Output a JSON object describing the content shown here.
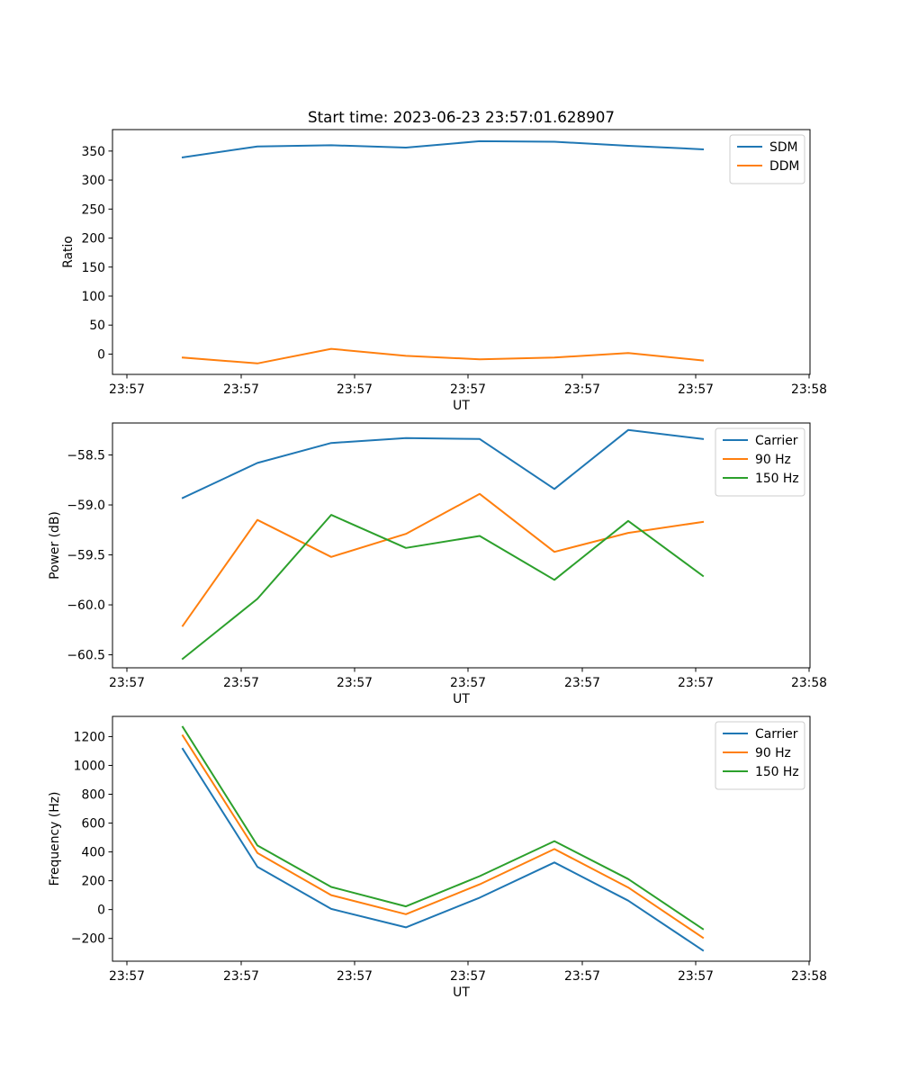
{
  "figure": {
    "title": "Start time: 2023-06-23 23:57:01.628907"
  },
  "chart_data": [
    {
      "type": "line",
      "title": "Start time: 2023-06-23 23:57:01.628907",
      "xlabel": "UT",
      "ylabel": "Ratio",
      "x_tick_labels": [
        "23:57",
        "23:57",
        "23:57",
        "23:57",
        "23:57",
        "23:57",
        "23:58"
      ],
      "y_ticks": [
        0,
        50,
        100,
        150,
        200,
        250,
        300,
        350
      ],
      "ylim": [
        -35,
        387
      ],
      "x": [
        1,
        2,
        3,
        4,
        5,
        6,
        7,
        8
      ],
      "series": [
        {
          "name": "SDM",
          "color": "#1f77b4",
          "values": [
            339,
            358,
            360,
            356,
            367,
            366,
            359,
            353
          ]
        },
        {
          "name": "DDM",
          "color": "#ff7f0e",
          "values": [
            -6,
            -16,
            9,
            -3,
            -9,
            -6,
            2,
            -11
          ]
        }
      ],
      "legend": "top-right",
      "grid": false
    },
    {
      "type": "line",
      "title": "",
      "xlabel": "UT",
      "ylabel": "Power (dB)",
      "x_tick_labels": [
        "23:57",
        "23:57",
        "23:57",
        "23:57",
        "23:57",
        "23:57",
        "23:58"
      ],
      "y_ticks": [
        -60.5,
        -60.0,
        -59.5,
        -59.0,
        -58.5
      ],
      "y_tick_labels": [
        "−60.5",
        "−60.0",
        "−59.5",
        "−59.0",
        "−58.5"
      ],
      "ylim": [
        -60.63,
        -58.18
      ],
      "x": [
        1,
        2,
        3,
        4,
        5,
        6,
        7,
        8
      ],
      "series": [
        {
          "name": "Carrier",
          "color": "#1f77b4",
          "values": [
            -58.93,
            -58.58,
            -58.38,
            -58.33,
            -58.34,
            -58.84,
            -58.25,
            -58.34
          ]
        },
        {
          "name": "90 Hz",
          "color": "#ff7f0e",
          "values": [
            -60.21,
            -59.15,
            -59.52,
            -59.29,
            -58.89,
            -59.47,
            -59.28,
            -59.17
          ]
        },
        {
          "name": "150 Hz",
          "color": "#2ca02c",
          "values": [
            -60.54,
            -59.94,
            -59.1,
            -59.43,
            -59.31,
            -59.75,
            -59.16,
            -59.71
          ]
        }
      ],
      "legend": "top-right",
      "grid": false
    },
    {
      "type": "line",
      "title": "",
      "xlabel": "UT",
      "ylabel": "Frequency (Hz)",
      "x_tick_labels": [
        "23:57",
        "23:57",
        "23:57",
        "23:57",
        "23:57",
        "23:57",
        "23:58"
      ],
      "y_ticks": [
        -200,
        0,
        200,
        400,
        600,
        800,
        1000,
        1200
      ],
      "y_tick_labels": [
        "−200",
        "0",
        "200",
        "400",
        "600",
        "800",
        "1000",
        "1200"
      ],
      "ylim": [
        -358,
        1340
      ],
      "x": [
        1,
        2,
        3,
        4,
        5,
        6,
        7,
        8
      ],
      "series": [
        {
          "name": "Carrier",
          "color": "#1f77b4",
          "values": [
            1115,
            297,
            5,
            -123,
            83,
            327,
            62,
            -283
          ]
        },
        {
          "name": "90 Hz",
          "color": "#ff7f0e",
          "values": [
            1207,
            393,
            100,
            -32,
            175,
            420,
            153,
            -195
          ]
        },
        {
          "name": "150 Hz",
          "color": "#2ca02c",
          "values": [
            1267,
            445,
            157,
            22,
            232,
            475,
            212,
            -135
          ]
        }
      ],
      "legend": "top-right",
      "grid": false
    }
  ]
}
